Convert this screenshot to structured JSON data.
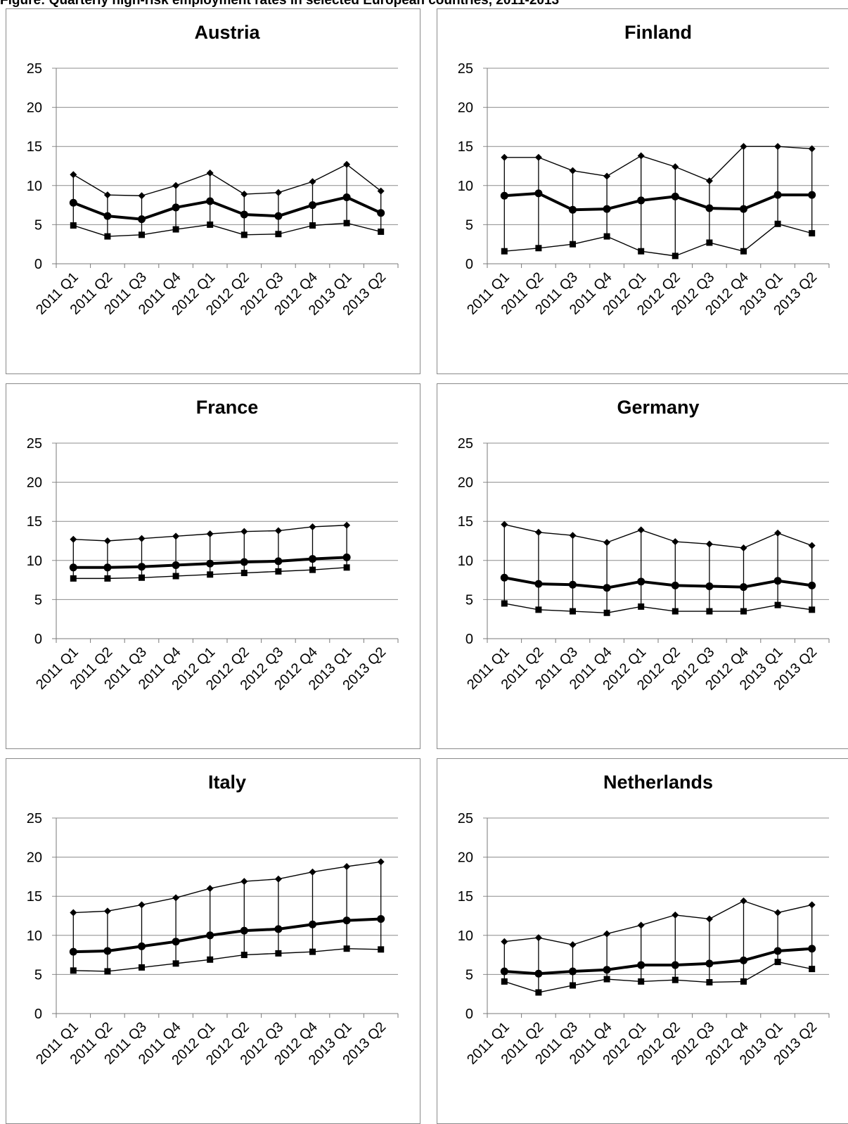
{
  "caption": "Figure: Quarterly high-risk employment rates in selected European countries, 2011-2013",
  "chart_data": [
    {
      "type": "line",
      "title": "Austria",
      "categories": [
        "2011 Q1",
        "2011 Q2",
        "2011 Q3",
        "2011 Q4",
        "2012 Q1",
        "2012 Q2",
        "2012 Q3",
        "2012 Q4",
        "2013 Q1",
        "2013 Q2"
      ],
      "ylim": [
        0,
        25
      ],
      "yticks": [
        "0",
        "5",
        "10",
        "15",
        "20",
        "25"
      ],
      "grid": true,
      "style": "high-low-close",
      "series": [
        {
          "marker": "diamond",
          "values": [
            11.4,
            8.8,
            8.7,
            10.0,
            11.6,
            8.9,
            9.1,
            10.5,
            12.7,
            9.3
          ]
        },
        {
          "marker": "circle",
          "values": [
            7.8,
            6.1,
            5.7,
            7.2,
            8.0,
            6.3,
            6.1,
            7.5,
            8.5,
            6.5
          ]
        },
        {
          "marker": "square",
          "values": [
            4.9,
            3.5,
            3.7,
            4.4,
            5.0,
            3.7,
            3.8,
            4.9,
            5.2,
            4.1
          ]
        }
      ]
    },
    {
      "type": "line",
      "title": "Finland",
      "categories": [
        "2011 Q1",
        "2011 Q2",
        "2011 Q3",
        "2011 Q4",
        "2012 Q1",
        "2012 Q2",
        "2012 Q3",
        "2012 Q4",
        "2013 Q1",
        "2013 Q2"
      ],
      "ylim": [
        0,
        25
      ],
      "yticks": [
        "0",
        "5",
        "10",
        "15",
        "20",
        "25"
      ],
      "grid": true,
      "style": "high-low-close",
      "series": [
        {
          "marker": "diamond",
          "values": [
            13.6,
            13.6,
            11.9,
            11.2,
            13.8,
            12.4,
            10.6,
            15.0,
            15.0,
            14.7
          ]
        },
        {
          "marker": "circle",
          "values": [
            8.7,
            9.0,
            6.9,
            7.0,
            8.1,
            8.6,
            7.1,
            7.0,
            8.8,
            8.8
          ]
        },
        {
          "marker": "square",
          "values": [
            1.6,
            2.0,
            2.5,
            3.5,
            1.6,
            1.0,
            2.7,
            1.6,
            5.1,
            3.9
          ]
        }
      ]
    },
    {
      "type": "line",
      "title": "France",
      "categories": [
        "2011 Q1",
        "2011 Q2",
        "2011 Q3",
        "2011 Q4",
        "2012 Q1",
        "2012 Q2",
        "2012 Q3",
        "2012 Q4",
        "2013 Q1",
        "2013 Q2"
      ],
      "ylim": [
        0,
        25
      ],
      "yticks": [
        "0",
        "5",
        "10",
        "15",
        "20",
        "25"
      ],
      "grid": true,
      "style": "high-low-close",
      "series": [
        {
          "marker": "diamond",
          "values": [
            12.7,
            12.5,
            12.8,
            13.1,
            13.4,
            13.7,
            13.8,
            14.3,
            14.5,
            null
          ]
        },
        {
          "marker": "circle",
          "values": [
            9.1,
            9.1,
            9.2,
            9.4,
            9.6,
            9.8,
            9.9,
            10.2,
            10.4,
            null
          ]
        },
        {
          "marker": "square",
          "values": [
            7.7,
            7.7,
            7.8,
            8.0,
            8.2,
            8.4,
            8.6,
            8.8,
            9.1,
            null
          ]
        }
      ]
    },
    {
      "type": "line",
      "title": "Germany",
      "categories": [
        "2011 Q1",
        "2011 Q2",
        "2011 Q3",
        "2011 Q4",
        "2012 Q1",
        "2012 Q2",
        "2012 Q3",
        "2012 Q4",
        "2013 Q1",
        "2013 Q2"
      ],
      "ylim": [
        0,
        25
      ],
      "yticks": [
        "0",
        "5",
        "10",
        "15",
        "20",
        "25"
      ],
      "grid": true,
      "style": "high-low-close",
      "series": [
        {
          "marker": "diamond",
          "values": [
            14.6,
            13.6,
            13.2,
            12.3,
            13.9,
            12.4,
            12.1,
            11.6,
            13.5,
            11.9
          ]
        },
        {
          "marker": "circle",
          "values": [
            7.8,
            7.0,
            6.9,
            6.5,
            7.3,
            6.8,
            6.7,
            6.6,
            7.4,
            6.8
          ]
        },
        {
          "marker": "square",
          "values": [
            4.5,
            3.7,
            3.5,
            3.3,
            4.1,
            3.5,
            3.5,
            3.5,
            4.3,
            3.7
          ]
        }
      ]
    },
    {
      "type": "line",
      "title": "Italy",
      "categories": [
        "2011 Q1",
        "2011 Q2",
        "2011 Q3",
        "2011 Q4",
        "2012 Q1",
        "2012 Q2",
        "2012 Q3",
        "2012 Q4",
        "2013 Q1",
        "2013 Q2"
      ],
      "ylim": [
        0,
        25
      ],
      "yticks": [
        "0",
        "5",
        "10",
        "15",
        "20",
        "25"
      ],
      "grid": true,
      "style": "high-low-close",
      "series": [
        {
          "marker": "diamond",
          "values": [
            12.9,
            13.1,
            13.9,
            14.8,
            16.0,
            16.9,
            17.2,
            18.1,
            18.8,
            19.4
          ]
        },
        {
          "marker": "circle",
          "values": [
            7.9,
            8.0,
            8.6,
            9.2,
            10.0,
            10.6,
            10.8,
            11.4,
            11.9,
            12.1
          ]
        },
        {
          "marker": "square",
          "values": [
            5.5,
            5.4,
            5.9,
            6.4,
            6.9,
            7.5,
            7.7,
            7.9,
            8.3,
            8.2
          ]
        }
      ]
    },
    {
      "type": "line",
      "title": "Netherlands",
      "categories": [
        "2011 Q1",
        "2011 Q2",
        "2011 Q3",
        "2011 Q4",
        "2012 Q1",
        "2012 Q2",
        "2012 Q3",
        "2012 Q4",
        "2013 Q1",
        "2013 Q2"
      ],
      "ylim": [
        0,
        25
      ],
      "yticks": [
        "0",
        "5",
        "10",
        "15",
        "20",
        "25"
      ],
      "grid": true,
      "style": "high-low-close",
      "series": [
        {
          "marker": "diamond",
          "values": [
            9.2,
            9.7,
            8.8,
            10.2,
            11.3,
            12.6,
            12.1,
            14.4,
            12.9,
            13.9
          ]
        },
        {
          "marker": "circle",
          "values": [
            5.4,
            5.1,
            5.4,
            5.6,
            6.2,
            6.2,
            6.4,
            6.8,
            8.0,
            8.3
          ]
        },
        {
          "marker": "square",
          "values": [
            4.1,
            2.7,
            3.6,
            4.4,
            4.1,
            4.3,
            4.0,
            4.1,
            6.6,
            5.7
          ]
        }
      ]
    }
  ]
}
